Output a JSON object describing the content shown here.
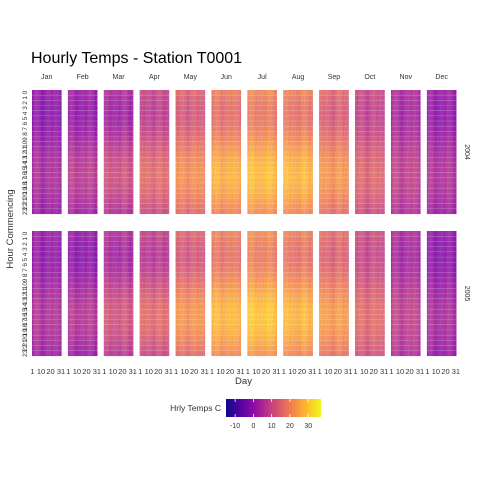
{
  "chart_data": {
    "type": "heatmap",
    "title": "Hourly Temps - Station T0001",
    "xlabel": "Day",
    "ylabel": "Hour Commencing",
    "months": [
      "Jan",
      "Feb",
      "Mar",
      "Apr",
      "May",
      "Jun",
      "Jul",
      "Aug",
      "Sep",
      "Oct",
      "Nov",
      "Dec"
    ],
    "years": [
      "2004",
      "2005"
    ],
    "hours": [
      "0",
      "1",
      "2",
      "3",
      "4",
      "5",
      "6",
      "7",
      "8",
      "9",
      "10",
      "11",
      "12",
      "13",
      "14",
      "15",
      "16",
      "17",
      "18",
      "19",
      "20",
      "21",
      "22",
      "23"
    ],
    "x_ticks": [
      "1",
      "10",
      "20",
      "31"
    ],
    "legend": {
      "title": "Hrly Temps C",
      "ticks": [
        "-10",
        "0",
        "10",
        "20",
        "30"
      ],
      "range": [
        -15,
        37
      ],
      "colors": [
        "#0d0887",
        "#5302a3",
        "#8b0aa5",
        "#b83289",
        "#db5c68",
        "#f48849",
        "#febd2a",
        "#f0f921"
      ]
    },
    "series": [
      {
        "year": "2004",
        "monthly_min": [
          -1,
          0,
          2,
          7,
          12,
          16,
          18,
          17,
          13,
          8,
          3,
          0
        ],
        "monthly_max": [
          4,
          7,
          11,
          16,
          22,
          27,
          29,
          28,
          23,
          15,
          8,
          5
        ]
      },
      {
        "year": "2005",
        "monthly_min": [
          0,
          -1,
          3,
          6,
          12,
          17,
          19,
          17,
          14,
          9,
          3,
          -1
        ],
        "monthly_max": [
          5,
          6,
          12,
          16,
          23,
          28,
          30,
          28,
          24,
          16,
          8,
          4
        ]
      }
    ]
  }
}
